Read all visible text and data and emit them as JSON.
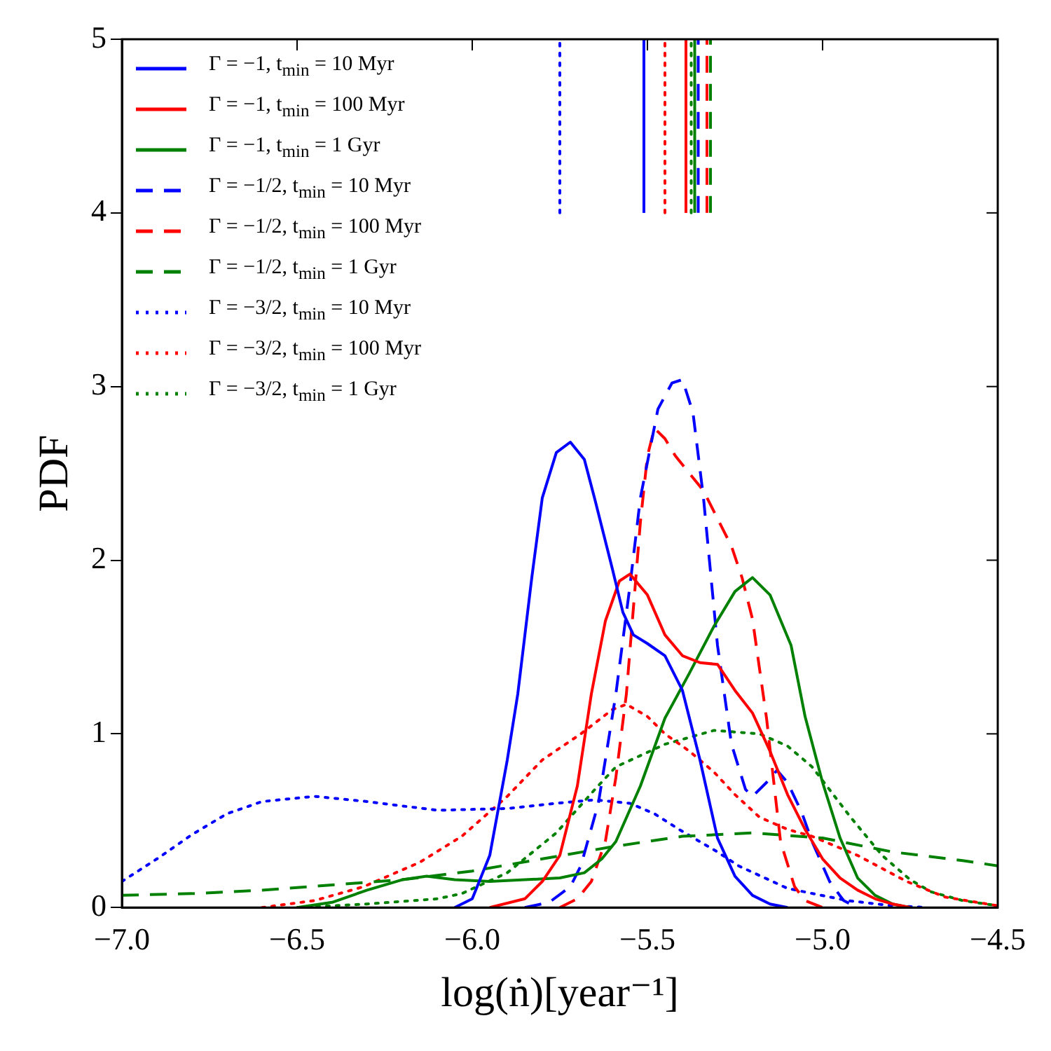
{
  "chart_data": {
    "type": "line",
    "xlabel": "log(ṅ)[year⁻¹]",
    "ylabel": "PDF",
    "xlim": [
      -7.0,
      -4.5
    ],
    "xticks": [
      {
        "value": -7.0,
        "label": "−7.0"
      },
      {
        "value": -6.5,
        "label": "−6.5"
      },
      {
        "value": -6.0,
        "label": "−6.0"
      },
      {
        "value": -5.5,
        "label": "−5.5"
      },
      {
        "value": -5.0,
        "label": "−5.0"
      },
      {
        "value": -4.5,
        "label": "−4.5"
      }
    ],
    "ylim": [
      0,
      5
    ],
    "yticks": [
      0,
      1,
      2,
      3,
      4,
      5
    ],
    "grid": false,
    "legend": "top left",
    "marker": "none",
    "series": [
      {
        "name": "Γ = −1, t$_{min}$ = 10 Myr",
        "color": "#0000ff",
        "line_style": "solid",
        "x": [
          -6.05,
          -6.0,
          -5.95,
          -5.9,
          -5.87,
          -5.83,
          -5.8,
          -5.76,
          -5.72,
          -5.68,
          -5.65,
          -5.6,
          -5.57,
          -5.54,
          -5.5,
          -5.45,
          -5.4,
          -5.35,
          -5.3,
          -5.25,
          -5.2,
          -5.15,
          -5.1
        ],
        "values": [
          0,
          0.05,
          0.3,
          0.85,
          1.23,
          1.9,
          2.36,
          2.62,
          2.68,
          2.58,
          2.35,
          1.95,
          1.7,
          1.57,
          1.52,
          1.45,
          1.25,
          0.85,
          0.4,
          0.18,
          0.07,
          0.02,
          0
        ]
      },
      {
        "name": "Γ = −1, t$_{min}$ = 100 Myr",
        "color": "#ff0000",
        "line_style": "solid",
        "x": [
          -5.95,
          -5.85,
          -5.8,
          -5.75,
          -5.7,
          -5.66,
          -5.62,
          -5.58,
          -5.55,
          -5.5,
          -5.45,
          -5.4,
          -5.35,
          -5.3,
          -5.25,
          -5.2,
          -5.15,
          -5.1,
          -5.05,
          -5.0,
          -4.95,
          -4.9,
          -4.85,
          -4.8,
          -4.75
        ],
        "values": [
          0,
          0.05,
          0.15,
          0.3,
          0.7,
          1.23,
          1.65,
          1.88,
          1.92,
          1.8,
          1.57,
          1.45,
          1.41,
          1.4,
          1.25,
          1.12,
          0.9,
          0.65,
          0.45,
          0.28,
          0.17,
          0.1,
          0.05,
          0.02,
          0
        ]
      },
      {
        "name": "Γ = −1, t$_{min}$ = 1 Gyr",
        "color": "#008000",
        "line_style": "solid",
        "x": [
          -6.5,
          -6.4,
          -6.3,
          -6.2,
          -6.13,
          -6.05,
          -5.95,
          -5.85,
          -5.75,
          -5.68,
          -5.63,
          -5.59,
          -5.52,
          -5.45,
          -5.38,
          -5.31,
          -5.25,
          -5.2,
          -5.15,
          -5.09,
          -5.05,
          -5.0,
          -4.95,
          -4.9,
          -4.85,
          -4.8,
          -4.75
        ],
        "values": [
          0,
          0.03,
          0.1,
          0.16,
          0.18,
          0.16,
          0.15,
          0.16,
          0.17,
          0.2,
          0.28,
          0.38,
          0.7,
          1.09,
          1.35,
          1.62,
          1.82,
          1.9,
          1.8,
          1.51,
          1.1,
          0.72,
          0.4,
          0.17,
          0.07,
          0.02,
          0
        ]
      },
      {
        "name": "Γ = −1/2, t$_{min}$ = 10 Myr",
        "color": "#0000ff",
        "line_style": "dashed",
        "x": [
          -5.85,
          -5.78,
          -5.72,
          -5.69,
          -5.64,
          -5.59,
          -5.55,
          -5.52,
          -5.47,
          -5.43,
          -5.4,
          -5.37,
          -5.34,
          -5.3,
          -5.26,
          -5.22,
          -5.2,
          -5.16,
          -5.13,
          -5.1,
          -5.06,
          -5.03,
          -4.98,
          -4.94,
          -4.9
        ],
        "values": [
          0,
          0.03,
          0.12,
          0.24,
          0.6,
          1.23,
          1.85,
          2.36,
          2.87,
          3.02,
          3.04,
          2.85,
          2.36,
          1.51,
          0.94,
          0.68,
          0.64,
          0.72,
          0.79,
          0.72,
          0.55,
          0.38,
          0.15,
          0.04,
          0
        ]
      },
      {
        "name": "Γ = −1/2, t$_{min}$ = 100 Myr",
        "color": "#ff0000",
        "line_style": "dashed",
        "x": [
          -5.75,
          -5.7,
          -5.66,
          -5.62,
          -5.59,
          -5.56,
          -5.52,
          -5.5,
          -5.48,
          -5.45,
          -5.42,
          -5.38,
          -5.34,
          -5.31,
          -5.26,
          -5.23,
          -5.2,
          -5.16,
          -5.12,
          -5.08,
          -5.05,
          -5.0
        ],
        "values": [
          0,
          0.05,
          0.15,
          0.38,
          0.75,
          1.23,
          2.22,
          2.6,
          2.76,
          2.7,
          2.6,
          2.5,
          2.4,
          2.28,
          2.08,
          1.9,
          1.66,
          1.09,
          0.38,
          0.12,
          0.04,
          0
        ]
      },
      {
        "name": "Γ = −1/2, t$_{min}$ = 1 Gyr",
        "color": "#008000",
        "line_style": "dashed",
        "x": [
          -7.0,
          -6.8,
          -6.6,
          -6.4,
          -6.2,
          -6.0,
          -5.8,
          -5.6,
          -5.4,
          -5.2,
          -5.0,
          -4.8,
          -4.6,
          -4.5
        ],
        "values": [
          0.07,
          0.08,
          0.1,
          0.13,
          0.16,
          0.21,
          0.28,
          0.35,
          0.41,
          0.43,
          0.4,
          0.32,
          0.27,
          0.24
        ]
      },
      {
        "name": "Γ = −3/2, t$_{min}$ = 10 Myr",
        "color": "#0000ff",
        "line_style": "dotted",
        "x": [
          -7.0,
          -6.9,
          -6.8,
          -6.7,
          -6.6,
          -6.45,
          -6.3,
          -6.1,
          -5.9,
          -5.76,
          -5.65,
          -5.55,
          -5.48,
          -5.41,
          -5.3,
          -5.24,
          -5.1,
          -4.93,
          -4.8,
          -4.7
        ],
        "values": [
          0.15,
          0.28,
          0.42,
          0.54,
          0.61,
          0.64,
          0.61,
          0.56,
          0.57,
          0.6,
          0.62,
          0.6,
          0.54,
          0.45,
          0.32,
          0.24,
          0.11,
          0.04,
          0.01,
          0
        ]
      },
      {
        "name": "Γ = −3/2, t$_{min}$ = 100 Myr",
        "color": "#ff0000",
        "line_style": "dotted",
        "x": [
          -6.6,
          -6.45,
          -6.31,
          -6.15,
          -6.03,
          -5.9,
          -5.8,
          -5.69,
          -5.6,
          -5.56,
          -5.5,
          -5.45,
          -5.38,
          -5.31,
          -5.25,
          -5.18,
          -5.1,
          -5.03,
          -4.9,
          -4.76,
          -4.65,
          -4.5
        ],
        "values": [
          0,
          0.04,
          0.12,
          0.26,
          0.41,
          0.64,
          0.85,
          1.0,
          1.14,
          1.17,
          1.1,
          1.0,
          0.9,
          0.78,
          0.65,
          0.52,
          0.45,
          0.41,
          0.3,
          0.15,
          0.06,
          0.01
        ]
      },
      {
        "name": "Γ = −3/2, t$_{min}$ = 1 Gyr",
        "color": "#008000",
        "line_style": "dotted",
        "x": [
          -6.5,
          -6.3,
          -6.1,
          -6.03,
          -5.9,
          -5.76,
          -5.65,
          -5.59,
          -5.45,
          -5.31,
          -5.18,
          -5.1,
          -5.03,
          -4.92,
          -4.83,
          -4.75,
          -4.69,
          -4.6,
          -4.5
        ],
        "values": [
          0,
          0.02,
          0.05,
          0.08,
          0.2,
          0.43,
          0.68,
          0.81,
          0.94,
          1.02,
          1.0,
          0.93,
          0.81,
          0.52,
          0.3,
          0.16,
          0.09,
          0.04,
          0.01
        ]
      },
      {
        "color": "#0000ff",
        "line_style": "solid",
        "x": [
          -5.51,
          -5.51
        ],
        "values": [
          4,
          5
        ]
      },
      {
        "color": "#ff0000",
        "line_style": "solid",
        "x": [
          -5.39,
          -5.39
        ],
        "values": [
          4,
          5
        ]
      },
      {
        "color": "#008000",
        "line_style": "solid",
        "x": [
          -5.365,
          -5.365
        ],
        "values": [
          4,
          5
        ]
      },
      {
        "color": "#0000ff",
        "line_style": "dashed",
        "x": [
          -5.355,
          -5.355
        ],
        "values": [
          4,
          5
        ]
      },
      {
        "color": "#ff0000",
        "line_style": "dashed",
        "x": [
          -5.33,
          -5.33
        ],
        "values": [
          4,
          5
        ]
      },
      {
        "color": "#008000",
        "line_style": "dashed",
        "x": [
          -5.32,
          -5.32
        ],
        "values": [
          4,
          5
        ]
      },
      {
        "color": "#0000ff",
        "line_style": "dotted",
        "x": [
          -5.75,
          -5.75
        ],
        "values": [
          4,
          5
        ]
      },
      {
        "color": "#ff0000",
        "line_style": "dotted",
        "x": [
          -5.45,
          -5.45
        ],
        "values": [
          4,
          5
        ]
      },
      {
        "color": "#008000",
        "line_style": "dotted",
        "x": [
          -5.375,
          -5.375
        ],
        "values": [
          4,
          5
        ]
      }
    ]
  }
}
